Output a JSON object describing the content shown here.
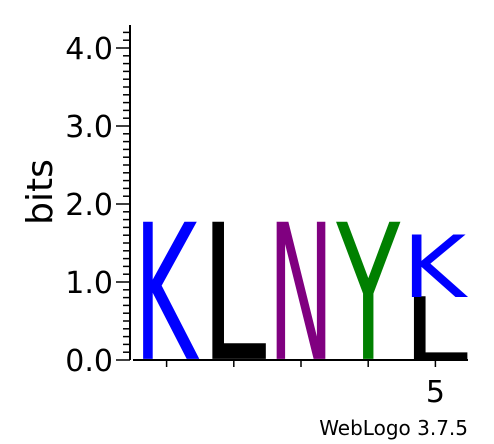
{
  "chart_data": {
    "type": "sequence-logo",
    "ylabel": "bits",
    "ylim": [
      0,
      4.3
    ],
    "y_ticks": [
      {
        "value": 0,
        "label": "0.0"
      },
      {
        "value": 1,
        "label": "1.0"
      },
      {
        "value": 2,
        "label": "2.0"
      },
      {
        "value": 3,
        "label": "3.0"
      },
      {
        "value": 4,
        "label": "4.0"
      }
    ],
    "x_tick_labels": [
      {
        "position": 5,
        "label": "5"
      }
    ],
    "positions": [
      {
        "position": 1,
        "letters": [
          {
            "letter": "K",
            "bits": 1.75,
            "color": "#0000ff"
          }
        ]
      },
      {
        "position": 2,
        "letters": [
          {
            "letter": "L",
            "bits": 1.75,
            "color": "#000000"
          }
        ]
      },
      {
        "position": 3,
        "letters": [
          {
            "letter": "N",
            "bits": 1.75,
            "color": "#800080"
          }
        ]
      },
      {
        "position": 4,
        "letters": [
          {
            "letter": "Y",
            "bits": 1.75,
            "color": "#008000"
          }
        ]
      },
      {
        "position": 5,
        "letters": [
          {
            "letter": "L",
            "bits": 0.8,
            "color": "#000000"
          },
          {
            "letter": "K",
            "bits": 0.8,
            "color": "#0000ff"
          }
        ]
      }
    ]
  },
  "footer": {
    "credit": "WebLogo 3.7.5"
  }
}
